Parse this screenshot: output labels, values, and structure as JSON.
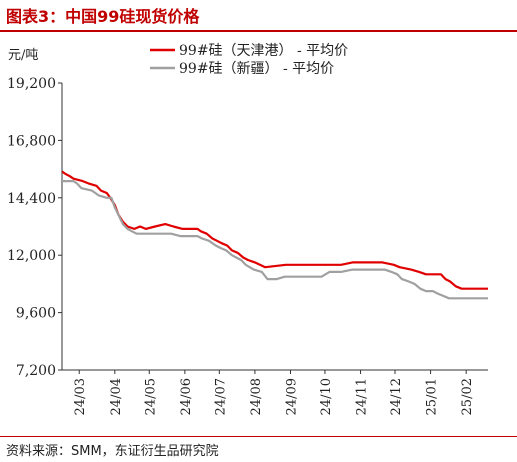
{
  "figure": {
    "title": "图表3：中国99硅现货价格",
    "source": "资料来源：SMM，东证衍生品研究院"
  },
  "chart_data": {
    "type": "line",
    "unit_label": "元/吨",
    "ylim": [
      7200,
      19200
    ],
    "yticks": [
      "19,200",
      "16,800",
      "14,400",
      "12,000",
      "9,600",
      "7,200"
    ],
    "ytick_values": [
      19200,
      16800,
      14400,
      12000,
      9600,
      7200
    ],
    "x_domain": [
      "2024-02-15",
      "2025-02-20"
    ],
    "xticks": [
      {
        "label": "24/03",
        "date": "2024-03-01"
      },
      {
        "label": "24/04",
        "date": "2024-04-01"
      },
      {
        "label": "24/05",
        "date": "2024-05-01"
      },
      {
        "label": "24/06",
        "date": "2024-06-01"
      },
      {
        "label": "24/07",
        "date": "2024-07-01"
      },
      {
        "label": "24/08",
        "date": "2024-08-01"
      },
      {
        "label": "24/09",
        "date": "2024-09-01"
      },
      {
        "label": "24/10",
        "date": "2024-10-01"
      },
      {
        "label": "24/11",
        "date": "2024-11-01"
      },
      {
        "label": "24/12",
        "date": "2024-12-01"
      },
      {
        "label": "25/01",
        "date": "2025-01-01"
      },
      {
        "label": "25/02",
        "date": "2025-02-01"
      }
    ],
    "legend_position": "top",
    "grid": false,
    "series": [
      {
        "name": "99#硅（天津港） - 平均价",
        "color": "#e00000",
        "points": [
          [
            "2024-02-15",
            15500
          ],
          [
            "2024-02-18",
            15400
          ],
          [
            "2024-02-22",
            15300
          ],
          [
            "2024-02-25",
            15200
          ],
          [
            "2024-03-04",
            15100
          ],
          [
            "2024-03-09",
            15000
          ],
          [
            "2024-03-16",
            14900
          ],
          [
            "2024-03-20",
            14700
          ],
          [
            "2024-03-25",
            14600
          ],
          [
            "2024-03-28",
            14400
          ],
          [
            "2024-04-01",
            14100
          ],
          [
            "2024-04-04",
            13700
          ],
          [
            "2024-04-08",
            13400
          ],
          [
            "2024-04-12",
            13200
          ],
          [
            "2024-04-18",
            13100
          ],
          [
            "2024-04-23",
            13200
          ],
          [
            "2024-04-28",
            13100
          ],
          [
            "2024-05-06",
            13200
          ],
          [
            "2024-05-15",
            13300
          ],
          [
            "2024-05-22",
            13200
          ],
          [
            "2024-05-30",
            13100
          ],
          [
            "2024-06-12",
            13100
          ],
          [
            "2024-06-15",
            13000
          ],
          [
            "2024-06-20",
            12900
          ],
          [
            "2024-06-25",
            12700
          ],
          [
            "2024-06-29",
            12600
          ],
          [
            "2024-07-03",
            12500
          ],
          [
            "2024-07-08",
            12400
          ],
          [
            "2024-07-12",
            12200
          ],
          [
            "2024-07-17",
            12100
          ],
          [
            "2024-07-22",
            11900
          ],
          [
            "2024-07-26",
            11800
          ],
          [
            "2024-08-01",
            11700
          ],
          [
            "2024-08-10",
            11500
          ],
          [
            "2024-08-28",
            11600
          ],
          [
            "2024-09-10",
            11600
          ],
          [
            "2024-09-20",
            11600
          ],
          [
            "2024-10-05",
            11600
          ],
          [
            "2024-10-15",
            11600
          ],
          [
            "2024-10-25",
            11700
          ],
          [
            "2024-11-10",
            11700
          ],
          [
            "2024-11-20",
            11700
          ],
          [
            "2024-11-30",
            11600
          ],
          [
            "2024-12-05",
            11500
          ],
          [
            "2024-12-15",
            11400
          ],
          [
            "2024-12-22",
            11300
          ],
          [
            "2024-12-28",
            11200
          ],
          [
            "2025-01-10",
            11200
          ],
          [
            "2025-01-14",
            11000
          ],
          [
            "2025-01-18",
            10900
          ],
          [
            "2025-01-23",
            10700
          ],
          [
            "2025-01-28",
            10600
          ],
          [
            "2025-02-20",
            10600
          ]
        ]
      },
      {
        "name": "99#硅（新疆） - 平均价",
        "color": "#a0a0a0",
        "points": [
          [
            "2024-02-15",
            15100
          ],
          [
            "2024-02-25",
            15100
          ],
          [
            "2024-02-28",
            15000
          ],
          [
            "2024-03-03",
            14800
          ],
          [
            "2024-03-12",
            14700
          ],
          [
            "2024-03-15",
            14600
          ],
          [
            "2024-03-18",
            14500
          ],
          [
            "2024-03-25",
            14400
          ],
          [
            "2024-03-29",
            14400
          ],
          [
            "2024-04-01",
            14000
          ],
          [
            "2024-04-04",
            13700
          ],
          [
            "2024-04-08",
            13300
          ],
          [
            "2024-04-12",
            13100
          ],
          [
            "2024-04-16",
            13000
          ],
          [
            "2024-04-20",
            12900
          ],
          [
            "2024-04-26",
            12900
          ],
          [
            "2024-05-15",
            12900
          ],
          [
            "2024-05-20",
            12900
          ],
          [
            "2024-05-28",
            12800
          ],
          [
            "2024-06-12",
            12800
          ],
          [
            "2024-06-16",
            12700
          ],
          [
            "2024-06-22",
            12600
          ],
          [
            "2024-06-28",
            12400
          ],
          [
            "2024-07-02",
            12300
          ],
          [
            "2024-07-07",
            12200
          ],
          [
            "2024-07-12",
            12000
          ],
          [
            "2024-07-16",
            11900
          ],
          [
            "2024-07-20",
            11800
          ],
          [
            "2024-07-24",
            11600
          ],
          [
            "2024-07-31",
            11400
          ],
          [
            "2024-08-07",
            11300
          ],
          [
            "2024-08-12",
            11000
          ],
          [
            "2024-08-20",
            11000
          ],
          [
            "2024-08-27",
            11100
          ],
          [
            "2024-09-20",
            11100
          ],
          [
            "2024-09-28",
            11100
          ],
          [
            "2024-10-05",
            11300
          ],
          [
            "2024-10-15",
            11300
          ],
          [
            "2024-10-25",
            11400
          ],
          [
            "2024-11-12",
            11400
          ],
          [
            "2024-11-22",
            11400
          ],
          [
            "2024-11-28",
            11300
          ],
          [
            "2024-12-03",
            11200
          ],
          [
            "2024-12-07",
            11000
          ],
          [
            "2024-12-13",
            10900
          ],
          [
            "2024-12-18",
            10800
          ],
          [
            "2024-12-23",
            10600
          ],
          [
            "2024-12-28",
            10500
          ],
          [
            "2025-01-03",
            10500
          ],
          [
            "2025-01-07",
            10400
          ],
          [
            "2025-01-12",
            10300
          ],
          [
            "2025-01-17",
            10200
          ],
          [
            "2025-01-22",
            10200
          ],
          [
            "2025-02-20",
            10200
          ]
        ]
      }
    ]
  }
}
